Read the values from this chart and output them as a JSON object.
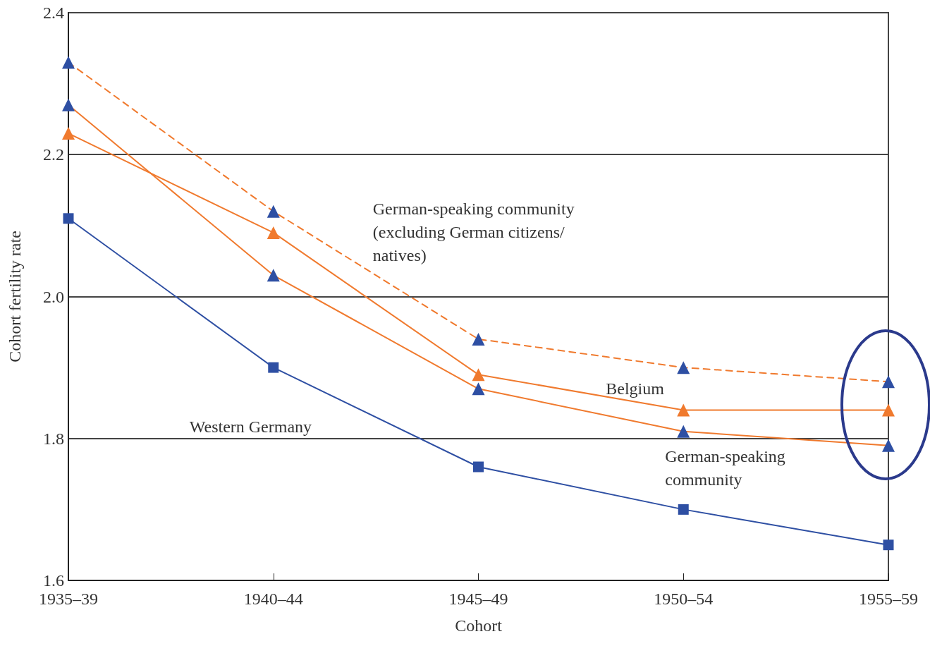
{
  "chart_data": {
    "type": "line",
    "xlabel": "Cohort",
    "ylabel": "Cohort fertility rate",
    "categories": [
      "1935–39",
      "1940–44",
      "1945–49",
      "1950–54",
      "1955–59"
    ],
    "series": [
      {
        "name": "German-speaking community (excluding German citizens/natives)",
        "color": "#f07a2e",
        "colors": [
          "#2e4fa3",
          "#2e4fa3",
          "#2e4fa3",
          "#2e4fa3",
          "#2e4fa3"
        ],
        "marker": "triangle",
        "line_style": "dashed",
        "values": [
          2.33,
          2.12,
          1.94,
          1.9,
          1.88
        ]
      },
      {
        "name": "German-speaking community",
        "color": "#f07a2e",
        "colors": [
          "#2e4fa3",
          "#2e4fa3",
          "#2e4fa3",
          "#2e4fa3",
          "#2e4fa3"
        ],
        "marker": "triangle",
        "line_style": "solid",
        "values": [
          2.27,
          2.03,
          1.87,
          1.81,
          1.79
        ]
      },
      {
        "name": "Belgium",
        "color": "#f07a2e",
        "colors": [
          "#f07a2e",
          "#f07a2e",
          "#f07a2e",
          "#f07a2e",
          "#f07a2e"
        ],
        "marker": "triangle",
        "line_style": "solid",
        "values": [
          2.23,
          2.09,
          1.89,
          1.84,
          1.84
        ]
      },
      {
        "name": "Western Germany",
        "color": "#2e4fa3",
        "colors": [
          "#2e4fa3",
          "#2e4fa3",
          "#2e4fa3",
          "#2e4fa3",
          "#2e4fa3"
        ],
        "marker": "square",
        "line_style": "solid",
        "values": [
          2.11,
          1.9,
          1.76,
          1.7,
          1.65
        ]
      }
    ],
    "ylim": [
      1.6,
      2.4
    ],
    "yticks": [
      1.6,
      1.8,
      {
        "value": 2,
        "label": "2.0"
      },
      2.2,
      2.4
    ],
    "grid": "y",
    "legend": false
  }
}
